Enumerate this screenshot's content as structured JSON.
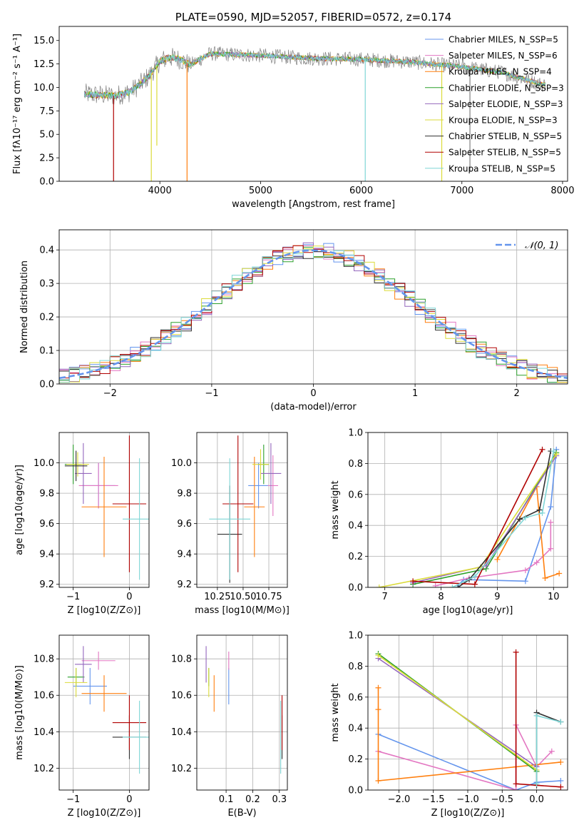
{
  "colors": {
    "chabrier_miles": "#6495ed",
    "salpeter_miles": "#e377c2",
    "kroupa_miles": "#ff7f0e",
    "chabrier_elodie": "#2ca02c",
    "salpeter_elodie": "#9467bd",
    "kroupa_elodie": "#dbdb3a",
    "chabrier_stelib": "#303030",
    "salpeter_stelib": "#b00000",
    "kroupa_stelib": "#7fd6d6",
    "data_grey": "#808080",
    "normal_dash": "#6495ed",
    "grid": "#b0b0b0"
  },
  "chart_data": [
    {
      "id": "spectrum",
      "type": "line",
      "title": "PLATE=0590, MJD=52057, FIBERID=0572, z=0.174",
      "xlabel": "wavelength [Angstrom, rest frame]",
      "ylabel": "Flux [fλ10⁻¹⁷ erg cm⁻² s⁻¹ A⁻¹]",
      "xlim": [
        3000,
        8050
      ],
      "ylim": [
        0,
        16.5
      ],
      "xticks": [
        "4000",
        "5000",
        "6000",
        "7000",
        "8000"
      ],
      "yticks": [
        "0.0",
        "2.5",
        "5.0",
        "7.5",
        "10.0",
        "12.5",
        "15.0"
      ],
      "legend_position": "top-right",
      "legend": [
        "Chabrier MILES, N_SSP=5",
        "Salpeter MILES, N_SSP=6",
        "Kroupa MILES, N_SSP=4",
        "Chabrier ELODIE, N_SSP=3",
        "Salpeter ELODIE, N_SSP=3",
        "Kroupa ELODIE, N_SSP=3",
        "Chabrier STELIB, N_SSP=5",
        "Salpeter STELIB, N_SSP=5",
        "Kroupa STELIB, N_SSP=5"
      ],
      "continuum": {
        "x": [
          3250,
          3400,
          3550,
          3700,
          3800,
          3900,
          4000,
          4100,
          4200,
          4300,
          4500,
          5000,
          5500,
          6000,
          6500,
          7000,
          7400,
          7800
        ],
        "y": [
          9.3,
          9.2,
          9.1,
          9.5,
          10.3,
          11.3,
          12.8,
          13.2,
          13.0,
          12.4,
          13.6,
          13.4,
          13.1,
          13.0,
          12.7,
          12.2,
          11.6,
          10.3
        ]
      },
      "dips": [
        [
          3540,
          0
        ],
        [
          3915,
          0
        ],
        [
          3970,
          3.8
        ],
        [
          4270,
          0
        ],
        [
          6040,
          0
        ],
        [
          6800,
          0
        ],
        [
          7080,
          1.0
        ]
      ]
    },
    {
      "id": "residuals",
      "type": "line",
      "xlabel": "(data-model)/error",
      "ylabel": "Normed distribution",
      "xlim": [
        -2.5,
        2.5
      ],
      "ylim": [
        0,
        0.46
      ],
      "xticks": [
        "−2",
        "−1",
        "0",
        "1",
        "2"
      ],
      "yticks": [
        "0.0",
        "0.1",
        "0.2",
        "0.3",
        "0.4"
      ],
      "legend": [
        "𝒩(0, 1)"
      ],
      "legend_position": "top-right",
      "bin_width": 0.1,
      "series_shape": "approximately normal, mean 0, sigma 1"
    },
    {
      "id": "age_vs_z",
      "type": "scatter",
      "xlabel": "Z [log10(Z/Z⊙)]",
      "ylabel": "age  [log10(age/yr)]",
      "xlim": [
        -1.25,
        0.35
      ],
      "ylim": [
        9.18,
        10.2
      ],
      "xticks": [
        "−1",
        "0"
      ],
      "yticks": [
        "9.2",
        "9.4",
        "9.6",
        "9.8",
        "10.0"
      ],
      "points": [
        {
          "x": -0.55,
          "xerr": 0.3,
          "y": 9.85,
          "yerr": 0.15
        },
        {
          "x": -0.55,
          "xerr": 0.35,
          "y": 9.85,
          "yerr": 0.15
        },
        {
          "x": -0.45,
          "xerr": 0.4,
          "y": 9.71,
          "yerr": 0.33
        },
        {
          "x": -1.0,
          "xerr": 0.15,
          "y": 9.99,
          "yerr": 0.13
        },
        {
          "x": -0.82,
          "xerr": 0.15,
          "y": 9.93,
          "yerr": 0.2
        },
        {
          "x": -0.92,
          "xerr": 0.2,
          "y": 9.99,
          "yerr": 0.08
        },
        {
          "x": -0.95,
          "xerr": 0.2,
          "y": 9.98,
          "yerr": 0.1
        },
        {
          "x": 0.0,
          "xerr": 0.3,
          "y": 9.73,
          "yerr": 0.45
        },
        {
          "x": 0.18,
          "xerr": 0.3,
          "y": 9.63,
          "yerr": 0.4
        }
      ]
    },
    {
      "id": "age_vs_mass",
      "type": "scatter",
      "xlabel": "mass [log10(M/M⊙)]",
      "ylabel": "",
      "xlim": [
        10.05,
        10.93
      ],
      "ylim": [
        9.18,
        10.2
      ],
      "xticks": [
        "10.25",
        "10.50",
        "10.75"
      ],
      "yticks": [
        "9.2",
        "9.4",
        "9.6",
        "9.8",
        "10.0"
      ],
      "points": [
        {
          "x": 10.65,
          "xerr": 0.1,
          "y": 9.85,
          "yerr": 0.15
        },
        {
          "x": 10.79,
          "xerr": 0.05,
          "y": 9.85,
          "yerr": 0.2
        },
        {
          "x": 10.61,
          "xerr": 0.1,
          "y": 9.71,
          "yerr": 0.33
        },
        {
          "x": 10.7,
          "xerr": 0.05,
          "y": 9.99,
          "yerr": 0.13
        },
        {
          "x": 10.77,
          "xerr": 0.1,
          "y": 9.93,
          "yerr": 0.2
        },
        {
          "x": 10.67,
          "xerr": 0.08,
          "y": 9.99,
          "yerr": 0.1
        },
        {
          "x": 10.37,
          "xerr": 0.12,
          "y": 9.53,
          "yerr": 0.32
        },
        {
          "x": 10.45,
          "xerr": 0.15,
          "y": 9.73,
          "yerr": 0.45
        },
        {
          "x": 10.37,
          "xerr": 0.2,
          "y": 9.63,
          "yerr": 0.4
        }
      ]
    },
    {
      "id": "weight_vs_age",
      "type": "line",
      "xlabel": "age  [log10(age/yr)]",
      "ylabel": "mass weight",
      "xlim": [
        6.7,
        10.25
      ],
      "ylim": [
        0,
        1.0
      ],
      "xticks": [
        "7",
        "8",
        "9",
        "10"
      ],
      "yticks": [
        "0.0",
        "0.2",
        "0.4",
        "0.6",
        "0.8",
        "1.0"
      ],
      "series": [
        {
          "key": "chabrier_miles",
          "x": [
            8.3,
            8.4,
            9.5,
            9.95,
            10.05
          ],
          "y": [
            0.01,
            0.05,
            0.04,
            0.52,
            0.89
          ]
        },
        {
          "key": "salpeter_miles",
          "x": [
            7.9,
            8.5,
            9.5,
            9.7,
            9.95,
            9.95
          ],
          "y": [
            0.01,
            0.06,
            0.11,
            0.16,
            0.25,
            0.42
          ]
        },
        {
          "key": "kroupa_miles",
          "x": [
            9.0,
            9.7,
            9.85,
            10.1
          ],
          "y": [
            0.18,
            0.65,
            0.06,
            0.09
          ]
        },
        {
          "key": "chabrier_elodie",
          "x": [
            7.5,
            8.8,
            10.05
          ],
          "y": [
            0.02,
            0.12,
            0.87
          ]
        },
        {
          "key": "salpeter_elodie",
          "x": [
            7.5,
            8.8,
            10.05
          ],
          "y": [
            0.03,
            0.14,
            0.85
          ]
        },
        {
          "key": "kroupa_elodie",
          "x": [
            6.9,
            8.7,
            10.05
          ],
          "y": [
            0.0,
            0.13,
            0.86
          ]
        },
        {
          "key": "chabrier_stelib",
          "x": [
            8.3,
            8.5,
            9.4,
            9.75,
            9.95
          ],
          "y": [
            0.0,
            0.05,
            0.44,
            0.5,
            0.88
          ]
        },
        {
          "key": "salpeter_stelib",
          "x": [
            7.5,
            8.6,
            9.8
          ],
          "y": [
            0.04,
            0.02,
            0.89
          ]
        },
        {
          "key": "kroupa_stelib",
          "x": [
            8.2,
            8.6,
            9.5,
            9.8,
            10.0
          ],
          "y": [
            0.0,
            0.07,
            0.45,
            0.48,
            0.88
          ]
        }
      ]
    },
    {
      "id": "mass_vs_z",
      "type": "scatter",
      "xlabel": "Z [log10(Z/Z⊙)]",
      "ylabel": "mass [log10(M/M⊙)]",
      "xlim": [
        -1.25,
        0.35
      ],
      "ylim": [
        10.08,
        10.93
      ],
      "xticks": [
        "−1",
        "0"
      ],
      "yticks": [
        "10.2",
        "10.4",
        "10.6",
        "10.8"
      ],
      "points": [
        {
          "x": -0.7,
          "xerr": 0.3,
          "y": 10.65,
          "yerr": 0.1
        },
        {
          "x": -0.55,
          "xerr": 0.3,
          "y": 10.79,
          "yerr": 0.05
        },
        {
          "x": -0.45,
          "xerr": 0.4,
          "y": 10.61,
          "yerr": 0.1
        },
        {
          "x": -0.95,
          "xerr": 0.15,
          "y": 10.7,
          "yerr": 0.05
        },
        {
          "x": -0.82,
          "xerr": 0.15,
          "y": 10.77,
          "yerr": 0.1
        },
        {
          "x": -0.95,
          "xerr": 0.2,
          "y": 10.67,
          "yerr": 0.08
        },
        {
          "x": 0.0,
          "xerr": 0.3,
          "y": 10.37,
          "yerr": 0.12
        },
        {
          "x": 0.0,
          "xerr": 0.3,
          "y": 10.45,
          "yerr": 0.15
        },
        {
          "x": 0.18,
          "xerr": 0.3,
          "y": 10.37,
          "yerr": 0.2
        }
      ]
    },
    {
      "id": "mass_vs_ebv",
      "type": "scatter",
      "xlabel": "E(B-V)",
      "ylabel": "",
      "xlim": [
        -0.01,
        0.33
      ],
      "ylim": [
        10.08,
        10.93
      ],
      "xticks": [
        "0.1",
        "0.2",
        "0.3"
      ],
      "yticks": [
        "10.2",
        "10.4",
        "10.6",
        "10.8"
      ],
      "points": [
        {
          "x": 0.11,
          "y": 10.65,
          "yerr": 0.1
        },
        {
          "x": 0.11,
          "y": 10.79,
          "yerr": 0.05
        },
        {
          "x": 0.055,
          "y": 10.61,
          "yerr": 0.1
        },
        {
          "x": 0.035,
          "y": 10.7,
          "yerr": 0.05
        },
        {
          "x": 0.025,
          "y": 10.77,
          "yerr": 0.1
        },
        {
          "x": 0.035,
          "y": 10.67,
          "yerr": 0.08
        },
        {
          "x": 0.31,
          "y": 10.37,
          "yerr": 0.12
        },
        {
          "x": 0.31,
          "y": 10.45,
          "yerr": 0.15
        },
        {
          "x": 0.305,
          "y": 10.37,
          "yerr": 0.2
        }
      ]
    },
    {
      "id": "weight_vs_z",
      "type": "line",
      "xlabel": "Z [log10(Z/Z⊙)]",
      "ylabel": "mass weight",
      "xlim": [
        -2.45,
        0.45
      ],
      "ylim": [
        0,
        1.0
      ],
      "xticks": [
        "−2.0",
        "−1.5",
        "−1.0",
        "−0.5",
        "0.0"
      ],
      "yticks": [
        "0.0",
        "0.2",
        "0.4",
        "0.6",
        "0.8",
        "1.0"
      ],
      "series": [
        {
          "key": "chabrier_miles",
          "x": [
            -2.3,
            -0.3,
            0.0,
            0.35
          ],
          "y": [
            0.36,
            0.0,
            0.05,
            0.06
          ]
        },
        {
          "key": "salpeter_miles",
          "x": [
            -2.3,
            -0.3,
            -0.3,
            0.0,
            0.22
          ],
          "y": [
            0.25,
            0.0,
            0.42,
            0.15,
            0.25
          ]
        },
        {
          "key": "kroupa_miles",
          "x": [
            -2.3,
            -2.3,
            -2.3,
            -0.3,
            0.35
          ],
          "y": [
            0.66,
            0.52,
            0.06,
            0.15,
            0.18
          ]
        },
        {
          "key": "chabrier_elodie",
          "x": [
            -2.3,
            0.0
          ],
          "y": [
            0.88,
            0.12
          ]
        },
        {
          "key": "salpeter_elodie",
          "x": [
            -2.3,
            0.0
          ],
          "y": [
            0.85,
            0.15
          ]
        },
        {
          "key": "kroupa_elodie",
          "x": [
            -2.3,
            0.0
          ],
          "y": [
            0.87,
            0.13
          ]
        },
        {
          "key": "chabrier_stelib",
          "x": [
            0.0,
            0.0,
            0.35
          ],
          "y": [
            0.03,
            0.5,
            0.44
          ]
        },
        {
          "key": "salpeter_stelib",
          "x": [
            -0.3,
            -0.3,
            0.35
          ],
          "y": [
            0.89,
            0.04,
            0.02
          ]
        },
        {
          "key": "kroupa_stelib",
          "x": [
            0.0,
            0.0,
            0.35
          ],
          "y": [
            0.04,
            0.48,
            0.44
          ]
        }
      ]
    }
  ]
}
